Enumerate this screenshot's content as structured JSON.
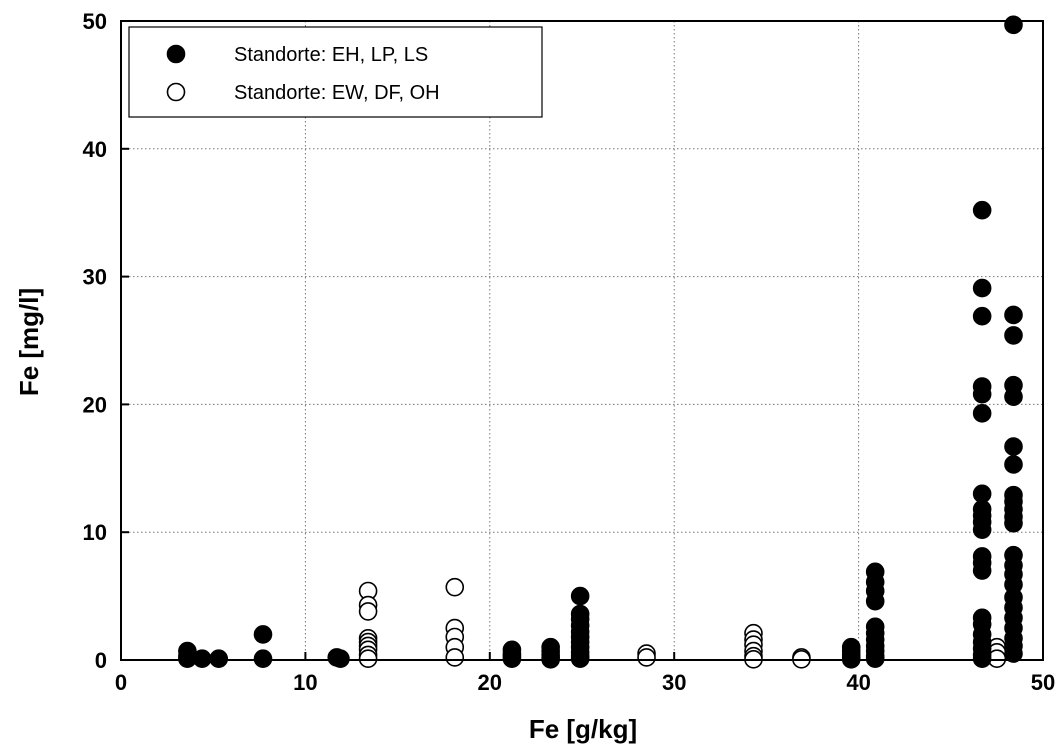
{
  "chart_data": {
    "type": "scatter",
    "title": "",
    "xlabel": "Fe [g/kg]",
    "ylabel": "Fe [mg/l]",
    "xlim": [
      0,
      50
    ],
    "ylim": [
      0,
      50
    ],
    "xticks": [
      0,
      10,
      20,
      30,
      40,
      50
    ],
    "yticks": [
      0,
      10,
      20,
      30,
      40,
      50
    ],
    "grid": true,
    "legend_position": "top-left",
    "series": [
      {
        "name": "Standorte: EH, LP, LS",
        "marker": "filled-circle",
        "color": "#000000",
        "points": [
          [
            3.6,
            0.7
          ],
          [
            3.6,
            0.3
          ],
          [
            3.6,
            0.1
          ],
          [
            4.4,
            0.1
          ],
          [
            5.3,
            0.1
          ],
          [
            7.7,
            2.0
          ],
          [
            7.7,
            0.1
          ],
          [
            11.7,
            0.2
          ],
          [
            11.9,
            0.1
          ],
          [
            21.2,
            0.8
          ],
          [
            21.2,
            0.5
          ],
          [
            21.2,
            0.3
          ],
          [
            21.2,
            0.1
          ],
          [
            23.3,
            1.0
          ],
          [
            23.3,
            0.7
          ],
          [
            23.3,
            0.4
          ],
          [
            23.3,
            0.2
          ],
          [
            23.3,
            0.05
          ],
          [
            24.9,
            5.0
          ],
          [
            24.9,
            3.6
          ],
          [
            24.9,
            3.2
          ],
          [
            24.9,
            2.7
          ],
          [
            24.9,
            2.2
          ],
          [
            24.9,
            1.8
          ],
          [
            24.9,
            1.4
          ],
          [
            24.9,
            1.0
          ],
          [
            24.9,
            0.6
          ],
          [
            24.9,
            0.3
          ],
          [
            24.9,
            0.1
          ],
          [
            39.6,
            1.0
          ],
          [
            39.6,
            0.7
          ],
          [
            39.6,
            0.4
          ],
          [
            39.6,
            0.2
          ],
          [
            39.6,
            0.05
          ],
          [
            40.9,
            6.9
          ],
          [
            40.9,
            6.1
          ],
          [
            40.9,
            5.4
          ],
          [
            40.9,
            4.6
          ],
          [
            40.9,
            2.6
          ],
          [
            40.9,
            2.1
          ],
          [
            40.9,
            1.6
          ],
          [
            40.9,
            1.1
          ],
          [
            40.9,
            0.7
          ],
          [
            40.9,
            0.3
          ],
          [
            40.9,
            0.1
          ],
          [
            46.7,
            35.2
          ],
          [
            46.7,
            29.1
          ],
          [
            46.7,
            26.9
          ],
          [
            46.7,
            21.4
          ],
          [
            46.7,
            20.8
          ],
          [
            46.7,
            19.3
          ],
          [
            46.7,
            13.0
          ],
          [
            46.7,
            11.8
          ],
          [
            46.7,
            11.3
          ],
          [
            46.7,
            10.8
          ],
          [
            46.7,
            10.2
          ],
          [
            46.7,
            8.1
          ],
          [
            46.7,
            7.6
          ],
          [
            46.7,
            7.0
          ],
          [
            46.7,
            3.3
          ],
          [
            46.7,
            2.8
          ],
          [
            46.7,
            2.0
          ],
          [
            46.7,
            1.4
          ],
          [
            46.7,
            0.9
          ],
          [
            46.7,
            0.4
          ],
          [
            46.7,
            0.1
          ],
          [
            48.4,
            49.7
          ],
          [
            48.4,
            27.0
          ],
          [
            48.4,
            25.4
          ],
          [
            48.4,
            21.5
          ],
          [
            48.4,
            20.6
          ],
          [
            48.4,
            16.7
          ],
          [
            48.4,
            15.3
          ],
          [
            48.4,
            12.9
          ],
          [
            48.4,
            12.4
          ],
          [
            48.4,
            11.8
          ],
          [
            48.4,
            11.2
          ],
          [
            48.4,
            10.7
          ],
          [
            48.4,
            8.2
          ],
          [
            48.4,
            7.4
          ],
          [
            48.4,
            6.7
          ],
          [
            48.4,
            5.9
          ],
          [
            48.4,
            4.9
          ],
          [
            48.4,
            4.1
          ],
          [
            48.4,
            3.3
          ],
          [
            48.4,
            2.5
          ],
          [
            48.4,
            1.7
          ],
          [
            48.4,
            1.1
          ],
          [
            48.4,
            0.5
          ]
        ]
      },
      {
        "name": "Standorte: EW, DF, OH",
        "marker": "open-circle",
        "color": "#000000",
        "points": [
          [
            13.4,
            5.4
          ],
          [
            13.4,
            4.3
          ],
          [
            13.4,
            3.8
          ],
          [
            13.4,
            1.7
          ],
          [
            13.4,
            1.4
          ],
          [
            13.4,
            1.1
          ],
          [
            13.4,
            0.8
          ],
          [
            13.4,
            0.4
          ],
          [
            13.4,
            0.1
          ],
          [
            18.1,
            5.7
          ],
          [
            18.1,
            2.5
          ],
          [
            18.1,
            1.8
          ],
          [
            18.1,
            1.0
          ],
          [
            18.1,
            0.2
          ],
          [
            28.5,
            0.5
          ],
          [
            28.5,
            0.2
          ],
          [
            34.3,
            2.1
          ],
          [
            34.3,
            1.6
          ],
          [
            34.3,
            1.2
          ],
          [
            34.3,
            0.7
          ],
          [
            34.3,
            0.3
          ],
          [
            34.3,
            0.05
          ],
          [
            36.9,
            0.2
          ],
          [
            36.9,
            0.05
          ],
          [
            47.5,
            1.0
          ],
          [
            47.5,
            0.6
          ],
          [
            47.5,
            0.1
          ]
        ]
      }
    ]
  }
}
